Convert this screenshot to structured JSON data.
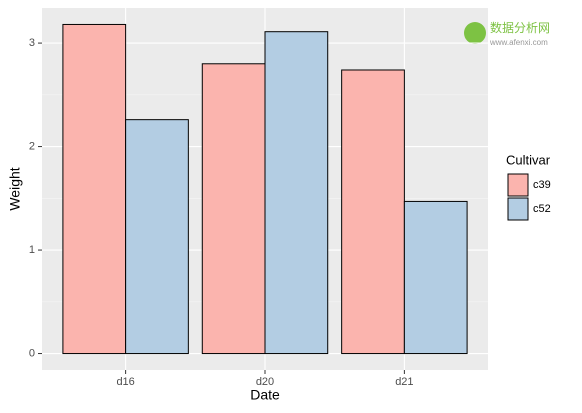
{
  "chart_data": {
    "type": "bar",
    "x_label": "Date",
    "y_label": "Weight",
    "categories": [
      "d16",
      "d20",
      "d21"
    ],
    "series": [
      {
        "name": "c39",
        "color": "#fbb4ae",
        "values": [
          3.18,
          2.8,
          2.74
        ]
      },
      {
        "name": "c52",
        "color": "#b3cde3",
        "values": [
          2.26,
          3.11,
          1.47
        ]
      }
    ],
    "ylim": [
      -0.159,
      3.339
    ],
    "yticks": [
      0,
      1,
      2,
      3
    ],
    "grid": true,
    "legend_title": "Cultivar",
    "legend_position": "right"
  },
  "watermark": {
    "name": "数据分析网",
    "url": "www.afenxi.com"
  }
}
